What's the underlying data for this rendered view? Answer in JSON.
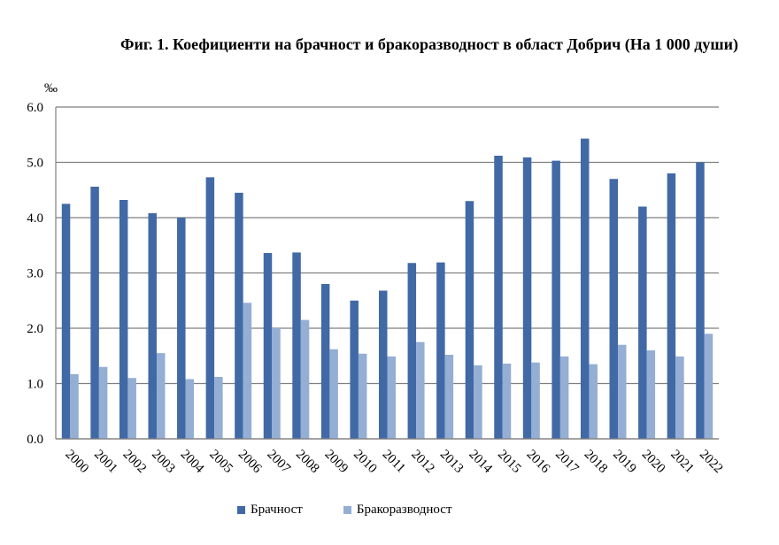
{
  "chart_data": {
    "type": "bar",
    "title": "Фиг. 1. Коефициенти на брачност и бракоразводност в област Добрич (На 1 000 души)",
    "unit_label": "‰",
    "ylim": [
      0,
      6
    ],
    "yticks": [
      "0.0",
      "1.0",
      "2.0",
      "3.0",
      "4.0",
      "5.0",
      "6.0"
    ],
    "grid": true,
    "legend_position": "bottom",
    "categories": [
      "2000",
      "2001",
      "2002",
      "2003",
      "2004",
      "2005",
      "2006",
      "2007",
      "2008",
      "2009",
      "2010",
      "2011",
      "2012",
      "2013",
      "2014",
      "2015",
      "2016",
      "2017",
      "2018",
      "2019",
      "2020",
      "2021",
      "2022"
    ],
    "series": [
      {
        "name": "Брачност",
        "color": "#4169a6",
        "values": [
          4.25,
          4.56,
          4.32,
          4.08,
          4.0,
          4.73,
          4.45,
          3.36,
          3.37,
          2.8,
          2.5,
          2.68,
          3.18,
          3.19,
          4.3,
          5.12,
          5.09,
          5.03,
          5.43,
          4.7,
          4.2,
          4.8,
          5.0
        ]
      },
      {
        "name": "Бракоразводност",
        "color": "#94aed4",
        "values": [
          1.17,
          1.3,
          1.1,
          1.55,
          1.08,
          1.12,
          2.46,
          2.0,
          2.15,
          1.62,
          1.54,
          1.49,
          1.75,
          1.52,
          1.33,
          1.36,
          1.38,
          1.49,
          1.35,
          1.7,
          1.6,
          1.49,
          1.9
        ]
      }
    ]
  }
}
